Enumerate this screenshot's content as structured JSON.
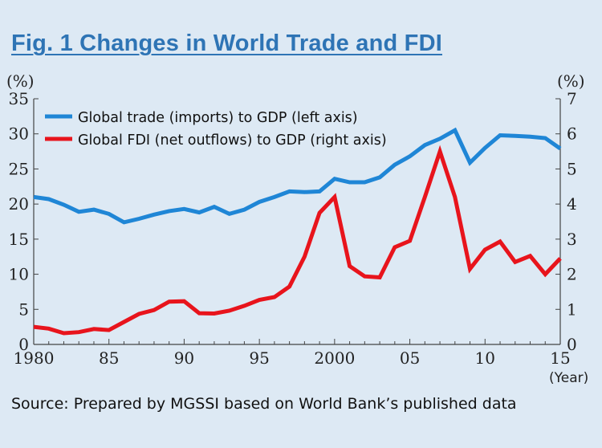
{
  "figure": {
    "title": "Fig. 1  Changes in World Trade and FDI",
    "source": "Source: Prepared by MGSSI based on World Bank’s published data"
  },
  "colors": {
    "background": "#dde9f4",
    "title": "#2e74b5",
    "trade_series": "#1f86d6",
    "fdi_series": "#e8141c"
  },
  "chart_data": {
    "type": "line",
    "x_tick_labels": [
      "1980",
      "85",
      "90",
      "95",
      "2000",
      "05",
      "10",
      "15"
    ],
    "x_tick_values": [
      1980,
      1985,
      1990,
      1995,
      2000,
      2005,
      2010,
      2015
    ],
    "x_unit_label": "(Year)",
    "xlim": [
      1980,
      2015
    ],
    "left_axis": {
      "unit_label": "(%)",
      "ylim": [
        0,
        35
      ],
      "ticks": [
        0,
        5,
        10,
        15,
        20,
        25,
        30,
        35
      ],
      "tick_labels": [
        "0",
        "5",
        "10",
        "15",
        "20",
        "25",
        "30",
        "35"
      ]
    },
    "right_axis": {
      "unit_label": "(%)",
      "ylim": [
        0,
        7
      ],
      "ticks": [
        0,
        1,
        2,
        3,
        4,
        5,
        6,
        7
      ],
      "tick_labels": [
        "0",
        "1",
        "2",
        "3",
        "4",
        "5",
        "6",
        "7"
      ]
    },
    "grid": false,
    "legend_position": "top-left",
    "x": [
      1980,
      1981,
      1982,
      1983,
      1984,
      1985,
      1986,
      1987,
      1988,
      1989,
      1990,
      1991,
      1992,
      1993,
      1994,
      1995,
      1996,
      1997,
      1998,
      1999,
      2000,
      2001,
      2002,
      2003,
      2004,
      2005,
      2006,
      2007,
      2008,
      2009,
      2010,
      2011,
      2012,
      2013,
      2014,
      2015
    ],
    "series": [
      {
        "name": "Global trade (imports) to GDP (left axis)",
        "axis": "left",
        "values": [
          21.0,
          20.7,
          19.9,
          18.9,
          19.2,
          18.6,
          17.4,
          17.9,
          18.5,
          19.0,
          19.3,
          18.8,
          19.6,
          18.6,
          19.2,
          20.3,
          21.0,
          21.8,
          21.7,
          21.8,
          23.6,
          23.1,
          23.1,
          23.8,
          25.6,
          26.8,
          28.4,
          29.3,
          30.5,
          25.9,
          28.0,
          29.8,
          29.7,
          29.6,
          29.4,
          27.9
        ]
      },
      {
        "name": "Global FDI (net outflows) to GDP (right axis)",
        "axis": "right",
        "values": [
          0.5,
          0.45,
          0.32,
          0.35,
          0.44,
          0.41,
          0.64,
          0.87,
          0.98,
          1.22,
          1.23,
          0.89,
          0.88,
          0.96,
          1.1,
          1.27,
          1.35,
          1.65,
          2.5,
          3.75,
          4.2,
          2.23,
          1.94,
          1.91,
          2.77,
          2.95,
          4.2,
          5.5,
          4.2,
          2.15,
          2.7,
          2.93,
          2.35,
          2.52,
          2.0,
          2.45
        ]
      }
    ]
  }
}
